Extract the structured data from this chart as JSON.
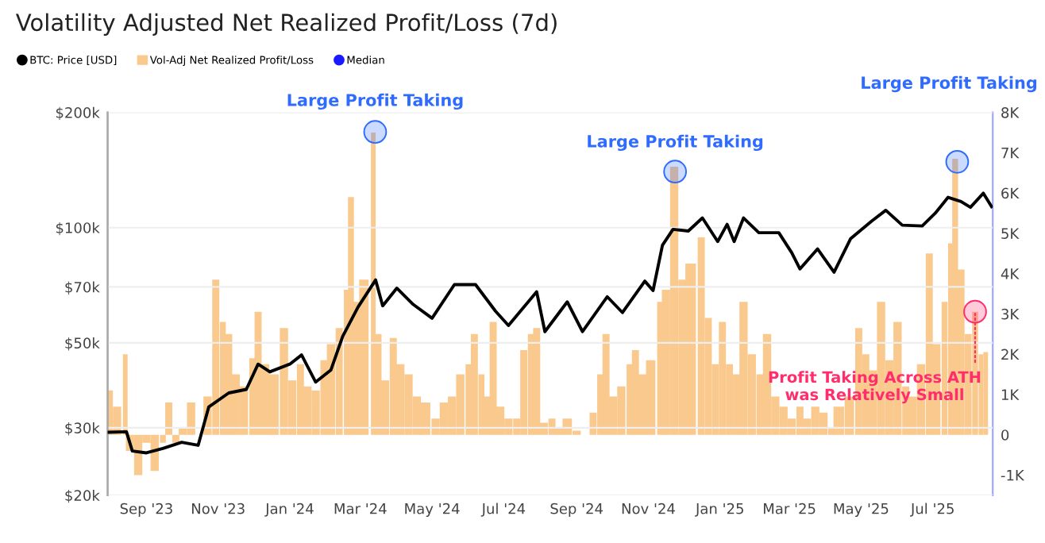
{
  "chart_data": {
    "type": "line",
    "title": "Volatility Adjusted Net Realized Profit/Loss (7d)",
    "xlim": [
      "2023-07-30",
      "2025-08-21"
    ],
    "xticks": [
      {
        "value": "2023-09-01",
        "label": "Sep '23"
      },
      {
        "value": "2023-11-01",
        "label": "Nov '23"
      },
      {
        "value": "2024-01-01",
        "label": "Jan '24"
      },
      {
        "value": "2024-03-01",
        "label": "Mar '24"
      },
      {
        "value": "2024-05-01",
        "label": "May '24"
      },
      {
        "value": "2024-07-01",
        "label": "Jul '24"
      },
      {
        "value": "2024-09-01",
        "label": "Sep '24"
      },
      {
        "value": "2024-11-01",
        "label": "Nov '24"
      },
      {
        "value": "2025-01-01",
        "label": "Jan '25"
      },
      {
        "value": "2025-03-01",
        "label": "Mar '25"
      },
      {
        "value": "2025-05-01",
        "label": "May '25"
      },
      {
        "value": "2025-07-01",
        "label": "Jul '25"
      }
    ],
    "log": "y",
    "ylim": [
      20000,
      200000
    ],
    "yticks": [
      {
        "value": 20000,
        "label": "$20k"
      },
      {
        "value": 30000,
        "label": "$30k"
      },
      {
        "value": 50000,
        "label": "$50k"
      },
      {
        "value": 70000,
        "label": "$70k"
      },
      {
        "value": 100000,
        "label": "$100k"
      },
      {
        "value": 200000,
        "label": "$200k"
      }
    ],
    "y2lim": [
      -1500,
      8000
    ],
    "y2ticks": [
      {
        "value": -1000,
        "label": "-1K"
      },
      0,
      {
        "value": 1000,
        "label": "1K"
      },
      {
        "value": 2000,
        "label": "2K"
      },
      {
        "value": 3000,
        "label": "3K"
      },
      {
        "value": 4000,
        "label": "4K"
      },
      {
        "value": 5000,
        "label": "5K"
      },
      {
        "value": 6000,
        "label": "6K"
      },
      {
        "value": 7000,
        "label": "7K"
      },
      {
        "value": 8000,
        "label": "8K"
      }
    ],
    "grid": "y",
    "legend": "top left",
    "series": [
      {
        "name": "BTC: Price [USD]",
        "color": "#000000",
        "axis": "y",
        "x": [
          "2023-07-30",
          "2023-08-15",
          "2023-08-20",
          "2023-09-01",
          "2023-09-15",
          "2023-10-01",
          "2023-10-15",
          "2023-10-24",
          "2023-11-10",
          "2023-11-25",
          "2023-12-05",
          "2023-12-15",
          "2024-01-01",
          "2024-01-11",
          "2024-01-23",
          "2024-02-05",
          "2024-02-15",
          "2024-02-28",
          "2024-03-14",
          "2024-03-20",
          "2024-04-01",
          "2024-04-15",
          "2024-05-01",
          "2024-05-20",
          "2024-06-07",
          "2024-06-24",
          "2024-07-05",
          "2024-07-29",
          "2024-08-05",
          "2024-08-24",
          "2024-09-06",
          "2024-09-27",
          "2024-10-10",
          "2024-10-29",
          "2024-11-05",
          "2024-11-13",
          "2024-11-22",
          "2024-12-05",
          "2024-12-17",
          "2024-12-30",
          "2025-01-07",
          "2025-01-13",
          "2025-01-21",
          "2025-02-03",
          "2025-02-20",
          "2025-03-03",
          "2025-03-10",
          "2025-03-25",
          "2025-04-08",
          "2025-04-22",
          "2025-05-10",
          "2025-05-22",
          "2025-06-05",
          "2025-06-22",
          "2025-07-03",
          "2025-07-14",
          "2025-07-25",
          "2025-08-02",
          "2025-08-13",
          "2025-08-20"
        ],
        "values": [
          29200,
          29300,
          26100,
          25800,
          26500,
          27500,
          27000,
          34000,
          37000,
          37800,
          44000,
          42000,
          44000,
          46500,
          39500,
          42500,
          52000,
          62000,
          73000,
          62500,
          69500,
          63000,
          58000,
          71000,
          71000,
          60500,
          55500,
          68000,
          53500,
          64000,
          53500,
          66000,
          60000,
          72500,
          68500,
          90000,
          99000,
          98000,
          106000,
          92000,
          102000,
          92000,
          106000,
          97000,
          97000,
          86000,
          78000,
          88000,
          76500,
          93500,
          104000,
          111000,
          101500,
          101000,
          109000,
          120000,
          117000,
          113000,
          123000,
          113500
        ]
      },
      {
        "name": "Vol-Adj Net Realized Profit/Loss",
        "type": "bar",
        "color": "#f9c98e",
        "axis": "y2",
        "x": [
          "2023-07-31",
          "2023-08-07",
          "2023-08-14",
          "2023-08-18",
          "2023-08-25",
          "2023-09-01",
          "2023-09-08",
          "2023-09-15",
          "2023-09-20",
          "2023-09-26",
          "2023-10-02",
          "2023-10-09",
          "2023-10-16",
          "2023-10-23",
          "2023-10-30",
          "2023-11-05",
          "2023-11-10",
          "2023-11-16",
          "2023-11-23",
          "2023-11-30",
          "2023-12-05",
          "2023-12-11",
          "2023-12-18",
          "2023-12-27",
          "2024-01-03",
          "2024-01-10",
          "2024-01-16",
          "2024-01-23",
          "2024-01-30",
          "2024-02-05",
          "2024-02-12",
          "2024-02-18",
          "2024-02-22",
          "2024-02-27",
          "2024-03-04",
          "2024-03-12",
          "2024-03-16",
          "2024-03-22",
          "2024-03-29",
          "2024-04-04",
          "2024-04-11",
          "2024-04-18",
          "2024-04-25",
          "2024-05-04",
          "2024-05-11",
          "2024-05-18",
          "2024-05-25",
          "2024-06-01",
          "2024-06-06",
          "2024-06-12",
          "2024-06-17",
          "2024-06-22",
          "2024-06-28",
          "2024-07-05",
          "2024-07-12",
          "2024-07-18",
          "2024-07-24",
          "2024-07-29",
          "2024-08-04",
          "2024-08-11",
          "2024-08-17",
          "2024-08-24",
          "2024-09-01",
          "2024-09-08",
          "2024-09-15",
          "2024-09-21",
          "2024-09-26",
          "2024-10-02",
          "2024-10-09",
          "2024-10-16",
          "2024-10-21",
          "2024-10-27",
          "2024-11-03",
          "2024-11-11",
          "2024-11-16",
          "2024-11-23",
          "2024-11-30",
          "2024-12-07",
          "2024-12-16",
          "2024-12-22",
          "2024-12-28",
          "2025-01-03",
          "2025-01-09",
          "2025-01-15",
          "2025-01-21",
          "2025-01-28",
          "2025-02-04",
          "2025-02-10",
          "2025-02-17",
          "2025-02-24",
          "2025-03-03",
          "2025-03-10",
          "2025-03-16",
          "2025-03-23",
          "2025-03-30",
          "2025-04-06",
          "2025-04-12",
          "2025-04-21",
          "2025-04-29",
          "2025-05-05",
          "2025-05-11",
          "2025-05-18",
          "2025-05-25",
          "2025-06-01",
          "2025-06-08",
          "2025-06-14",
          "2025-06-21",
          "2025-06-28",
          "2025-07-04",
          "2025-07-11",
          "2025-07-16",
          "2025-07-20",
          "2025-07-25",
          "2025-07-31",
          "2025-08-06",
          "2025-08-11",
          "2025-08-15"
        ],
        "values": [
          1100,
          700,
          2000,
          -400,
          -1000,
          -200,
          -900,
          -200,
          800,
          -200,
          150,
          800,
          0,
          950,
          3850,
          2800,
          2500,
          1500,
          1200,
          1900,
          3050,
          1750,
          1500,
          2650,
          1350,
          1750,
          1200,
          1100,
          1850,
          2250,
          2650,
          3600,
          5900,
          3300,
          3850,
          7500,
          2500,
          1350,
          2400,
          1750,
          1500,
          950,
          800,
          400,
          800,
          950,
          1500,
          1750,
          2500,
          1500,
          950,
          2800,
          700,
          400,
          400,
          2100,
          2500,
          2650,
          300,
          400,
          150,
          400,
          100,
          0,
          550,
          1500,
          2500,
          950,
          1200,
          1750,
          2100,
          1500,
          1850,
          3300,
          3600,
          6650,
          3850,
          4250,
          4900,
          2900,
          1750,
          2800,
          1750,
          1500,
          3300,
          2000,
          1500,
          2500,
          950,
          700,
          400,
          700,
          400,
          700,
          550,
          150,
          700,
          950,
          2650,
          2000,
          1600,
          3300,
          1850,
          2800,
          1200,
          950,
          1750,
          4500,
          2250,
          3300,
          4750,
          6850,
          4100,
          2500,
          3050,
          2000,
          2050
        ]
      },
      {
        "name": "Median",
        "color": "#1a1aff",
        "axis": "y2"
      }
    ],
    "annotations": [
      "Large Profit Taking",
      "Large Profit Taking",
      "Large Profit Taking",
      {
        "text": "Profit Taking Across ATH\nwas Relatively Small",
        "x": "2025-08-06",
        "y": 60300
      }
    ]
  }
}
